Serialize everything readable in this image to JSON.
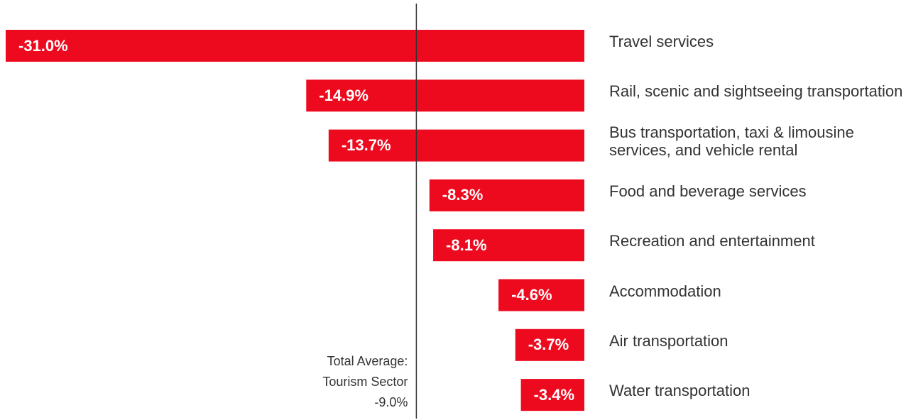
{
  "chart_data": {
    "type": "bar",
    "orientation": "horizontal",
    "categories": [
      "Travel services",
      "Rail, scenic and sightseeing transportation",
      "Bus transportation, taxi & limousine services, and vehicle rental",
      "Food and beverage services",
      "Recreation and entertainment",
      "Accommodation",
      "Air transportation",
      "Water transportation"
    ],
    "values": [
      -31.0,
      -14.9,
      -13.7,
      -8.3,
      -8.1,
      -4.6,
      -3.7,
      -3.4
    ],
    "value_labels": [
      "-31.0%",
      "-14.9%",
      "-13.7%",
      "-8.3%",
      "-8.1%",
      "-4.6%",
      "-3.7%",
      "-3.4%"
    ],
    "color": "#ee0a1e",
    "xlim": [
      -31.0,
      0
    ],
    "reference": {
      "value": -9.0,
      "title": [
        "Total Average:",
        "Tourism Sector"
      ],
      "label": "-9.0%"
    }
  }
}
